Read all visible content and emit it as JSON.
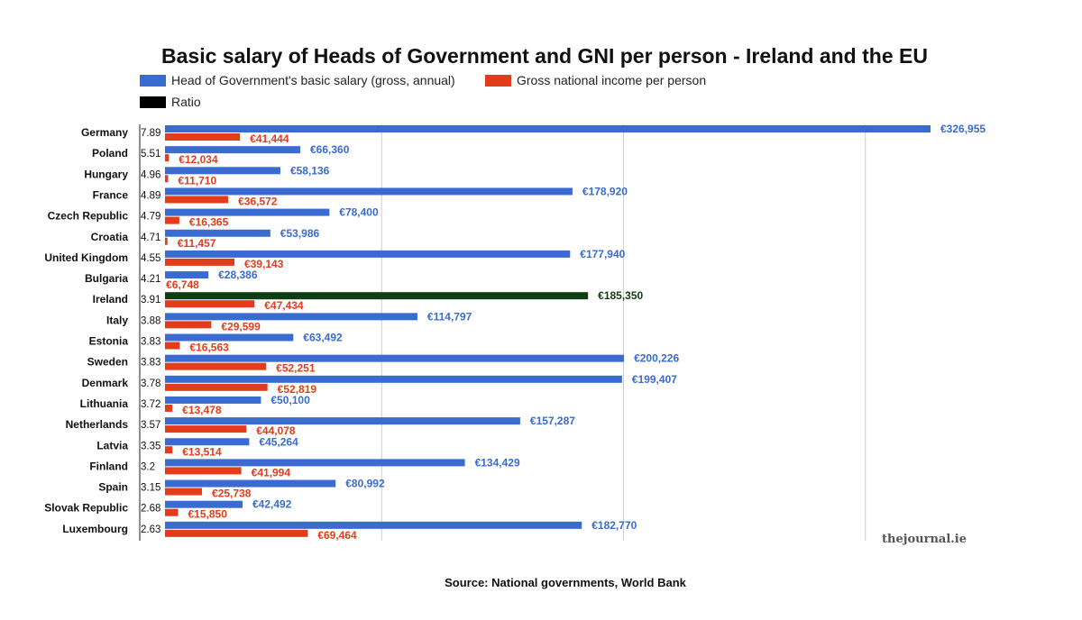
{
  "chart_data": {
    "type": "bar",
    "orientation": "horizontal",
    "title": "Basic salary of Heads of Government and GNI per person - Ireland and the EU",
    "legend": [
      {
        "name": "Head of Government's basic salary (gross, annual)",
        "color": "#3a6bd0"
      },
      {
        "name": "Gross national income per person",
        "color": "#e23c1a"
      },
      {
        "name": "Ratio",
        "color": "#000000"
      }
    ],
    "legend_position": "top",
    "grid": true,
    "highlight_category": "Ireland",
    "highlight_color": "#0f3d14",
    "categories": [
      "Germany",
      "Poland",
      "Hungary",
      "France",
      "Czech Republic",
      "Croatia",
      "United Kingdom",
      "Bulgaria",
      "Ireland",
      "Italy",
      "Estonia",
      "Sweden",
      "Denmark",
      "Lithuania",
      "Netherlands",
      "Latvia",
      "Finland",
      "Spain",
      "Slovak Republic",
      "Luxembourg"
    ],
    "ratio_labels": [
      "7.89",
      "5.51",
      "4.96",
      "4.89",
      "4.79",
      "4.71",
      "4.55",
      "4.21",
      "3.91",
      "3.88",
      "3.83",
      "3.83",
      "3.78",
      "3.72",
      "3.57",
      "3.35",
      "3.2",
      "3.15",
      "2.68",
      "2.63"
    ],
    "series": [
      {
        "name": "Head of Government's basic salary (gross, annual)",
        "values": [
          326955,
          66360,
          58136,
          178920,
          78400,
          53986,
          177940,
          28386,
          185350,
          114797,
          63492,
          200226,
          199407,
          50100,
          157287,
          45264,
          134429,
          80992,
          42492,
          182770
        ],
        "labels": [
          "€326,955",
          "€66,360",
          "€58,136",
          "€178,920",
          "€78,400",
          "€53,986",
          "€177,940",
          "€28,386",
          "€185,350",
          "€114,797",
          "€63,492",
          "€200,226",
          "€199,407",
          "€50,100",
          "€157,287",
          "€45,264",
          "€134,429",
          "€80,992",
          "€42,492",
          "€182,770"
        ]
      },
      {
        "name": "Gross national income per person",
        "values": [
          41444,
          12034,
          11710,
          36572,
          16365,
          11457,
          39143,
          6748,
          47434,
          29599,
          16563,
          52251,
          52819,
          13478,
          44078,
          13514,
          41994,
          25738,
          15850,
          69464
        ],
        "labels": [
          "€41,444",
          "€12,034",
          "€11,710",
          "€36,572",
          "€16,365",
          "€11,457",
          "€39,143",
          "€6,748",
          "€47,434",
          "€29,599",
          "€16,563",
          "€52,251",
          "€52,819",
          "€13,478",
          "€44,078",
          "€13,514",
          "€41,994",
          "€25,738",
          "€15,850",
          "€69,464"
        ]
      }
    ],
    "xlim": [
      0,
      330000
    ],
    "source": "Source: National governments, World Bank",
    "brand": "thejournal.ie"
  }
}
